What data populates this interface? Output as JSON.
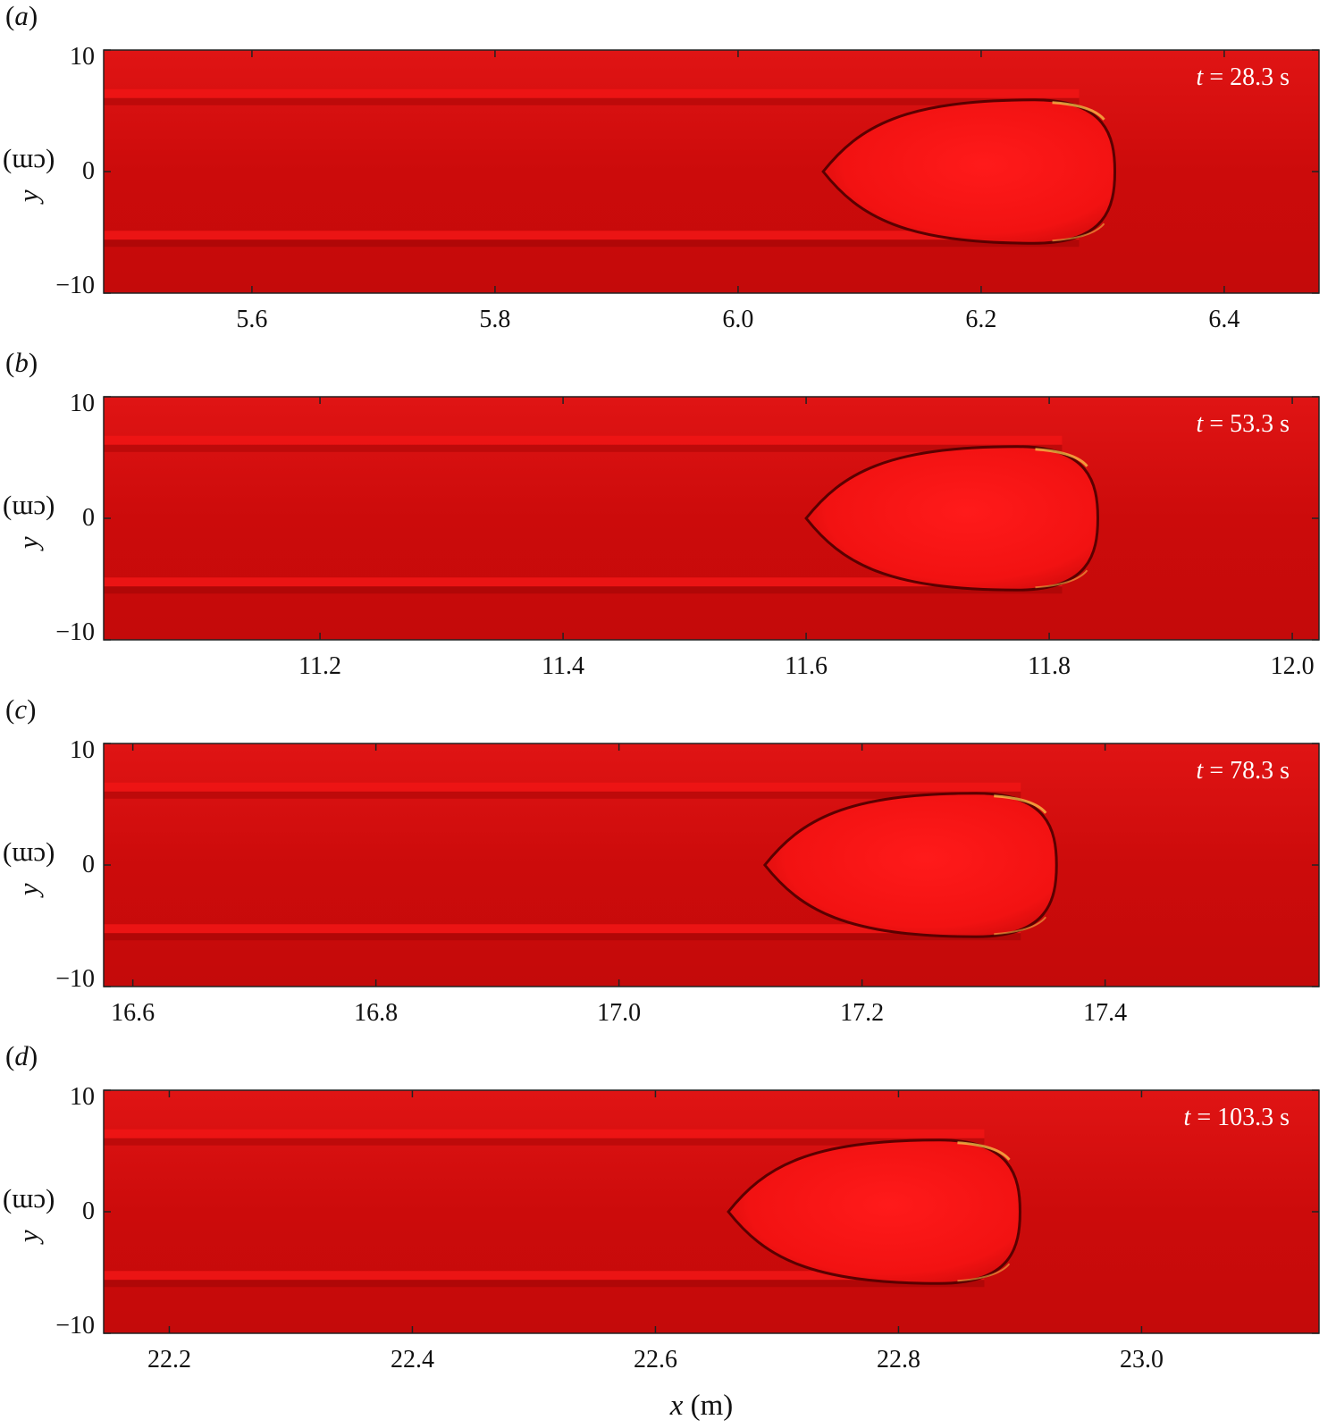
{
  "figure": {
    "y_axis_label": {
      "var": "y",
      "unit": " (cm)"
    },
    "x_axis_label": {
      "var": "x",
      "unit": " (m)"
    },
    "colors": {
      "field": "#cc0b0b",
      "bubble": "#ff1a1a",
      "band": "#ee1515",
      "edge": "#5a0000",
      "highlight": "#ffd24d"
    },
    "y_ticks": [
      "10",
      "0",
      "−10"
    ],
    "ylim": [
      -10,
      10
    ]
  },
  "panels": [
    {
      "label": "a",
      "time_label": {
        "var": "t",
        "text": " = 28.3 s"
      },
      "x_ticks": [
        "5.6",
        "5.8",
        "6.0",
        "6.2",
        "6.4"
      ],
      "x_tick_values": [
        5.6,
        5.8,
        6.0,
        6.2,
        6.4
      ],
      "xlim": [
        5.478,
        6.478
      ],
      "bubble_tail_x": 6.07,
      "bubble_nose_x": 6.31
    },
    {
      "label": "b",
      "time_label": {
        "var": "t",
        "text": " = 53.3 s"
      },
      "x_ticks": [
        "11.2",
        "11.4",
        "11.6",
        "11.8",
        "12.0"
      ],
      "x_tick_values": [
        11.2,
        11.4,
        11.6,
        11.8,
        12.0
      ],
      "xlim": [
        11.022,
        12.022
      ],
      "bubble_tail_x": 11.6,
      "bubble_nose_x": 11.84
    },
    {
      "label": "c",
      "time_label": {
        "var": "t",
        "text": " = 78.3 s"
      },
      "x_ticks": [
        "16.6",
        "16.8",
        "17.0",
        "17.2",
        "17.4"
      ],
      "x_tick_values": [
        16.6,
        16.8,
        17.0,
        17.2,
        17.4
      ],
      "xlim": [
        16.576,
        17.576
      ],
      "bubble_tail_x": 17.12,
      "bubble_nose_x": 17.36
    },
    {
      "label": "d",
      "time_label": {
        "var": "t",
        "text": " = 103.3 s"
      },
      "x_ticks": [
        "22.2",
        "22.4",
        "22.6",
        "22.8",
        "23.0"
      ],
      "x_tick_values": [
        22.2,
        22.4,
        22.6,
        22.8,
        23.0
      ],
      "xlim": [
        22.146,
        23.146
      ],
      "bubble_tail_x": 22.66,
      "bubble_nose_x": 22.9
    }
  ]
}
